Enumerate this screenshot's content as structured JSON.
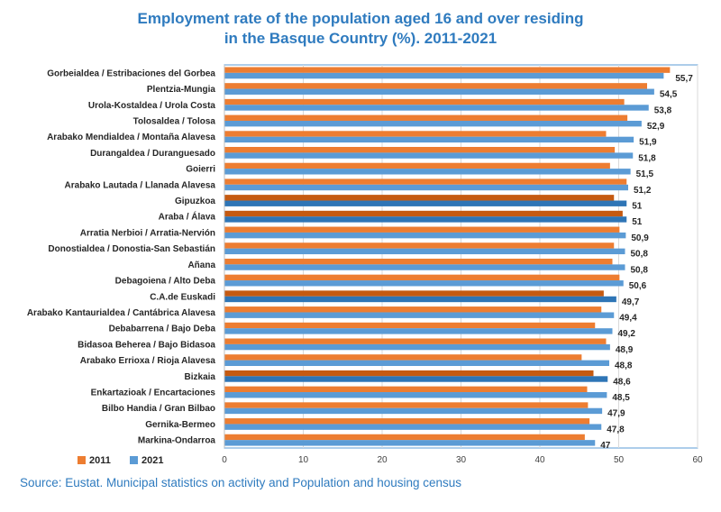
{
  "chart_data": {
    "type": "bar",
    "orientation": "horizontal",
    "title_lines": [
      "Employment rate of the population aged 16 and over residing",
      "in the Basque Country (%). 2011-2021"
    ],
    "source": "Source: Eustat. Municipal statistics on activity and  Population and housing census",
    "categories": [
      "Gorbeialdea / Estribaciones del Gorbea",
      "Plentzia-Mungia",
      "Urola-Kostaldea / Urola Costa",
      "Tolosaldea / Tolosa",
      "Arabako Mendialdea / Montaña Alavesa",
      "Durangaldea / Duranguesado",
      "Goierri",
      "Arabako Lautada / Llanada Alavesa",
      "Gipuzkoa",
      "Araba / Álava",
      "Arratia Nerbioi / Arratia-Nervión",
      "Donostialdea / Donostia-San Sebastián",
      "Añana",
      "Debagoiena / Alto Deba",
      "C.A.de Euskadi",
      "Arabako Kantaurialdea / Cantábrica Alavesa",
      "Debabarrena / Bajo Deba",
      "Bidasoa Beherea / Bajo Bidasoa",
      "Arabako Errioxa / Rioja Alavesa",
      "Bizkaia",
      "Enkartazioak / Encartaciones",
      "Bilbo Handia / Gran Bilbao",
      "Gernika-Bermeo",
      "Markina-Ondarroa"
    ],
    "highlighted": [
      "Gipuzkoa",
      "Araba / Álava",
      "C.A.de Euskadi",
      "Bizkaia"
    ],
    "series": [
      {
        "name": "2011",
        "color": "#ed7d31",
        "highlight_color": "#c55a11",
        "values": [
          56.5,
          53.6,
          50.7,
          51.1,
          48.4,
          49.5,
          48.9,
          51.0,
          49.4,
          50.5,
          50.1,
          49.4,
          49.2,
          50.1,
          48.1,
          47.8,
          47.0,
          48.4,
          45.3,
          46.8,
          46.0,
          46.1,
          46.3,
          45.7
        ]
      },
      {
        "name": "2021",
        "color": "#5b9bd5",
        "highlight_color": "#2e75b6",
        "values": [
          55.7,
          54.5,
          53.8,
          52.9,
          51.9,
          51.8,
          51.5,
          51.2,
          51,
          51,
          50.9,
          50.8,
          50.8,
          50.6,
          49.7,
          49.4,
          49.2,
          48.9,
          48.8,
          48.6,
          48.5,
          47.9,
          47.8,
          47
        ]
      }
    ],
    "value_labels": [
      "55,7",
      "54,5",
      "53,8",
      "52,9",
      "51,9",
      "51,8",
      "51,5",
      "51,2",
      "51",
      "51",
      "50,9",
      "50,8",
      "50,8",
      "50,6",
      "49,7",
      "49,4",
      "49,2",
      "48,9",
      "48,8",
      "48,6",
      "48,5",
      "47,9",
      "47,8",
      "47"
    ],
    "xlim": [
      0,
      60
    ],
    "xticks": [
      0,
      10,
      20,
      30,
      40,
      50,
      60
    ],
    "xtick_labels": [
      "0",
      "10",
      "20",
      "30",
      "40",
      "50",
      "60"
    ],
    "legend": [
      "2011",
      "2021"
    ],
    "legend_position": "bottom-left",
    "grid": true,
    "grid_color": "#d9d9d9",
    "title_color": "#2f7bbf"
  }
}
